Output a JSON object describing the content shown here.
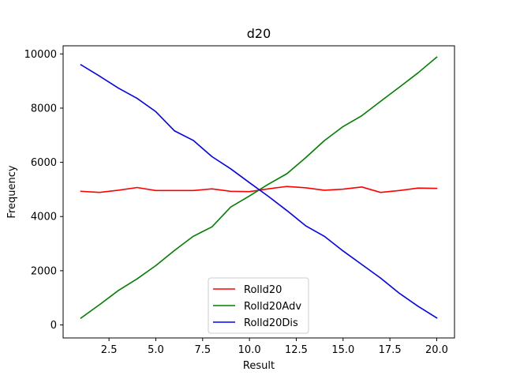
{
  "chart_data": {
    "type": "line",
    "title": "d20",
    "xlabel": "Result",
    "ylabel": "Frequency",
    "xlim": [
      0.05,
      20.95
    ],
    "ylim": [
      -480,
      10300
    ],
    "xticks": [
      2.5,
      5.0,
      7.5,
      10.0,
      12.5,
      15.0,
      17.5,
      20.0
    ],
    "xtick_labels": [
      "2.5",
      "5.0",
      "7.5",
      "10.0",
      "12.5",
      "15.0",
      "17.5",
      "20.0"
    ],
    "yticks": [
      0,
      2000,
      4000,
      6000,
      8000,
      10000
    ],
    "ytick_labels": [
      "0",
      "2000",
      "4000",
      "6000",
      "8000",
      "10000"
    ],
    "grid": false,
    "legend_position": "lower-center",
    "x": [
      1,
      2,
      3,
      4,
      5,
      6,
      7,
      8,
      9,
      10,
      11,
      12,
      13,
      14,
      15,
      16,
      17,
      18,
      19,
      20
    ],
    "series": [
      {
        "name": "Rolld20",
        "color": "#ff0000",
        "values": [
          4930,
          4890,
          4970,
          5070,
          4960,
          4960,
          4960,
          5020,
          4930,
          4920,
          5020,
          5110,
          5060,
          4970,
          5010,
          5090,
          4890,
          4960,
          5050,
          5040
        ]
      },
      {
        "name": "Rolld20Adv",
        "color": "#008000",
        "values": [
          250,
          750,
          1270,
          1700,
          2190,
          2750,
          3270,
          3620,
          4350,
          4760,
          5190,
          5580,
          6170,
          6800,
          7320,
          7720,
          8250,
          8770,
          9300,
          9880
        ]
      },
      {
        "name": "Rolld20Dis",
        "color": "#0000ff",
        "values": [
          9600,
          9180,
          8740,
          8360,
          7870,
          7160,
          6810,
          6210,
          5760,
          5250,
          4750,
          4220,
          3660,
          3270,
          2730,
          2230,
          1730,
          1170,
          690,
          260
        ]
      }
    ]
  }
}
